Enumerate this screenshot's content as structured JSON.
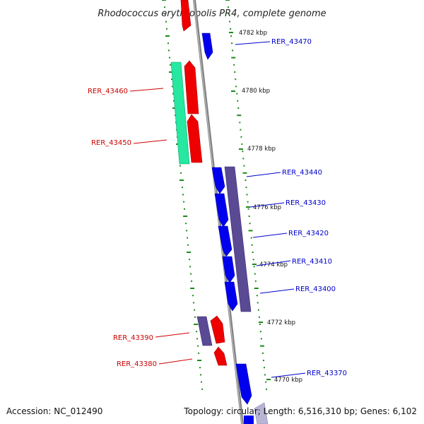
{
  "title": "Rhodococcus erythropolis PR4, complete genome",
  "footer": {
    "accession": "Accession: NC_012490",
    "summary": "Topology: circular; Length: 6,516,310 bp; Genes: 6,102"
  },
  "scale_labels": [
    "4782 kbp",
    "4780 kbp",
    "4778 kbp",
    "4776 kbp",
    "4774 kbp",
    "4772 kbp",
    "4770 kbp"
  ],
  "forward_gene_labels": [
    "RER_43470",
    "RER_43440",
    "RER_43430",
    "RER_43420",
    "RER_43410",
    "RER_43400",
    "RER_43370"
  ],
  "reverse_gene_labels": [
    "RER_43460",
    "RER_43450",
    "RER_43390",
    "RER_43380"
  ],
  "colors": {
    "backbone": "#808080",
    "forward_cds": "#0000ee",
    "reverse_cds": "#ee0000",
    "forward_operon": "#5a4a94",
    "reverse_operon": "#26e8a0",
    "tick": "#1a8a1a",
    "forward_label": "#0000cc",
    "reverse_label": "#cc0000"
  }
}
